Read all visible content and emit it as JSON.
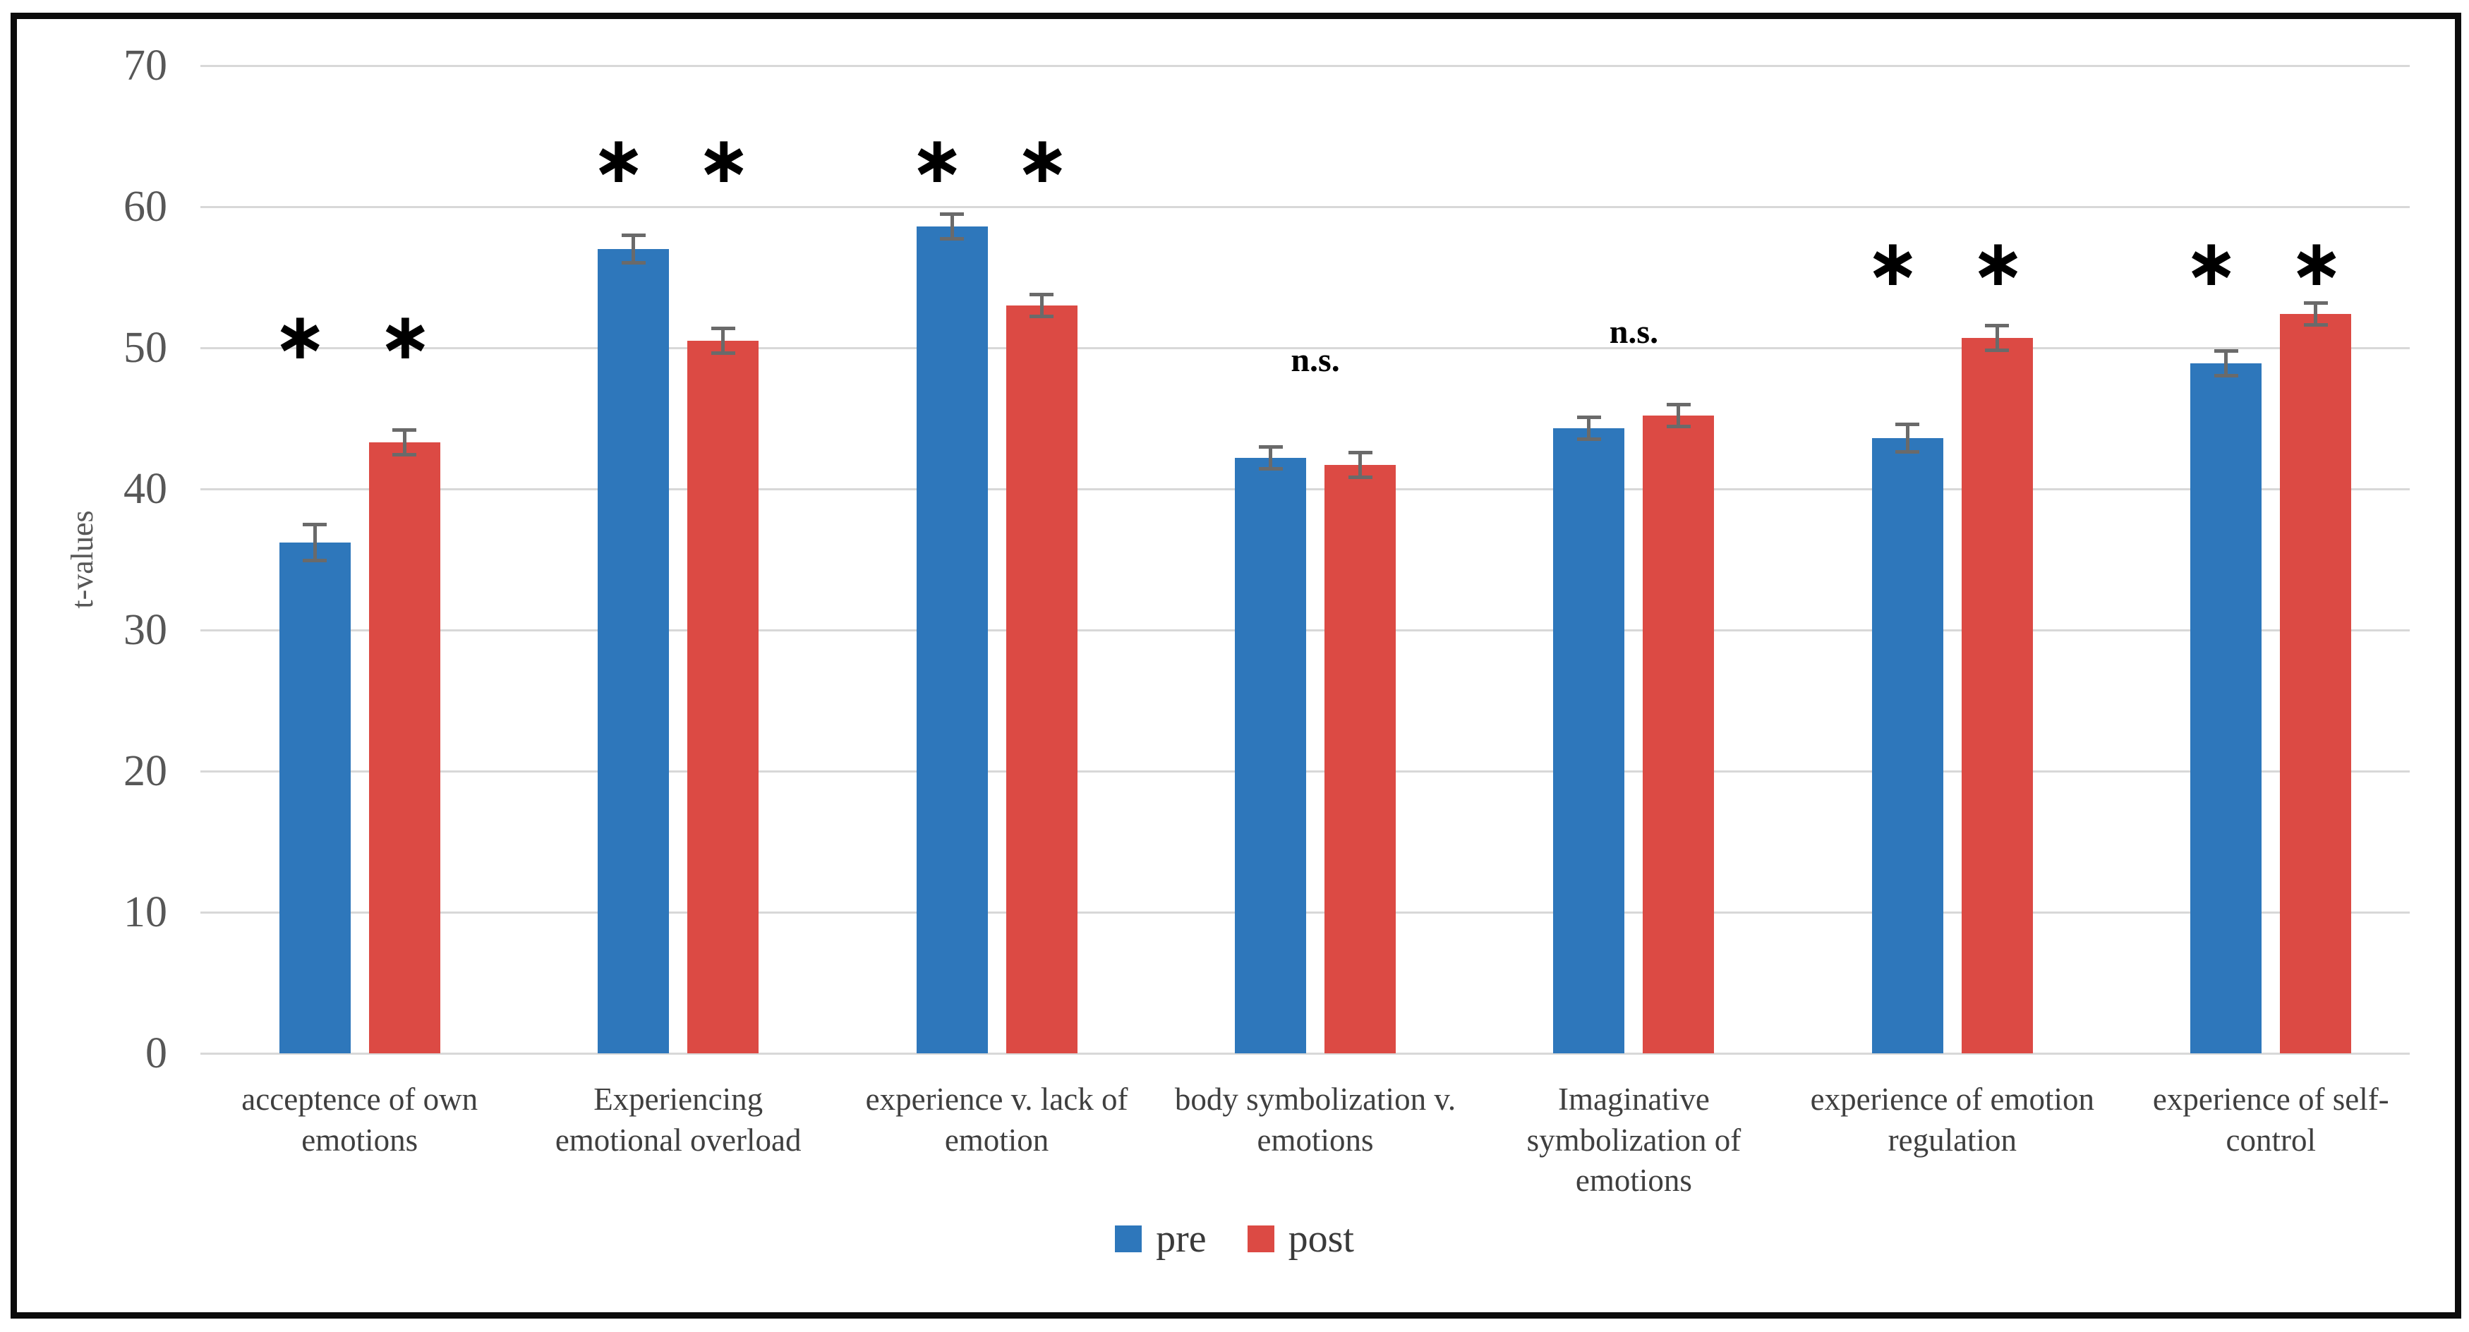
{
  "figure": {
    "background": "#ffffff",
    "frame_color": "#0c0c0c"
  },
  "chart_data": {
    "type": "bar",
    "title": "",
    "xlabel": "",
    "ylabel": "t-values",
    "ylim": [
      0,
      70
    ],
    "ytick_interval": 10,
    "yticks": [
      0,
      10,
      20,
      30,
      40,
      50,
      60,
      70
    ],
    "grid": true,
    "gridline_color": "#d8d8d8",
    "legend_position": "bottom",
    "categories": [
      "acceptence of own\nemotions",
      "Experiencing\nemotional overload",
      "experience v. lack of\nemotion",
      "body symbolization v.\nemotions",
      "Imaginative\nsymbolization of\nemotions",
      "experience of emotion\nregulation",
      "experience of self-\ncontrol"
    ],
    "series": [
      {
        "name": "pre",
        "color": "#2e77bb",
        "values": [
          36.2,
          57.0,
          58.6,
          42.2,
          44.3,
          43.6,
          48.9
        ],
        "errors": [
          1.3,
          1.0,
          0.9,
          0.8,
          0.8,
          1.0,
          0.9
        ]
      },
      {
        "name": "post",
        "color": "#dc4a44",
        "values": [
          43.3,
          50.5,
          53.0,
          41.7,
          45.2,
          50.7,
          52.4
        ],
        "errors": [
          0.9,
          0.9,
          0.8,
          0.9,
          0.8,
          0.9,
          0.8
        ]
      }
    ],
    "error_bar_color": "#6a6a6a",
    "significance": [
      {
        "label": "∗ ∗",
        "type": "stars",
        "y": 50.8
      },
      {
        "label": "∗ ∗",
        "type": "stars",
        "y": 63.3
      },
      {
        "label": "∗ ∗",
        "type": "stars",
        "y": 63.3
      },
      {
        "label": "n.s.",
        "type": "ns",
        "y": 48.9
      },
      {
        "label": "n.s.",
        "type": "ns",
        "y": 50.9
      },
      {
        "label": "∗ ∗",
        "type": "stars",
        "y": 56.0
      },
      {
        "label": "∗ ∗",
        "type": "stars",
        "y": 56.0
      }
    ]
  },
  "legend": {
    "items": [
      {
        "label": "pre",
        "color": "#2e77bb"
      },
      {
        "label": "post",
        "color": "#dc4a44"
      }
    ]
  }
}
